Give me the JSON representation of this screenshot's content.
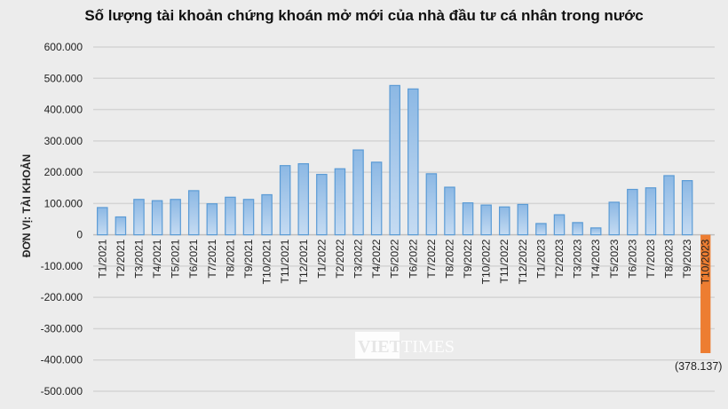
{
  "chart_data": {
    "type": "bar",
    "title": "Số lượng tài khoản chứng khoán mở mới của nhà đầu tư cá nhân trong nước",
    "ylabel": "ĐƠN VỊ: TÀI KHOẢN",
    "xlabel": "",
    "ylim": [
      -500000,
      600000
    ],
    "yticks": [
      600000,
      500000,
      400000,
      300000,
      200000,
      100000,
      0,
      -100000,
      -200000,
      -300000,
      -400000,
      -500000
    ],
    "ytick_labels": [
      "600.000",
      "500.000",
      "400.000",
      "300.000",
      "200.000",
      "100.000",
      "0",
      "-100.000",
      "-200.000",
      "-300.000",
      "-400.000",
      "-500.000"
    ],
    "grid": true,
    "categories": [
      "T1/2021",
      "T2/2021",
      "T3/2021",
      "T4/2021",
      "T5/2021",
      "T6/2021",
      "T7/2021",
      "T8/2021",
      "T9/2021",
      "T10/2021",
      "T11/2021",
      "T12/2021",
      "T1/2022",
      "T2/2022",
      "T3/2022",
      "T4/2022",
      "T5/2022",
      "T6/2022",
      "T7/2022",
      "T8/2022",
      "T9/2022",
      "T10/2022",
      "T11/2022",
      "T12/2022",
      "T1/2023",
      "T2/2023",
      "T3/2023",
      "T4/2023",
      "T5/2023",
      "T6/2023",
      "T7/2023",
      "T8/2023",
      "T9/2023",
      "T10/2023"
    ],
    "values": [
      87000,
      57000,
      113000,
      109000,
      113000,
      141000,
      99000,
      120000,
      113000,
      128000,
      221000,
      227000,
      193000,
      211000,
      271000,
      232000,
      477000,
      466000,
      195000,
      152000,
      102000,
      95000,
      89000,
      97000,
      36000,
      64000,
      39000,
      22000,
      104000,
      145000,
      150000,
      189000,
      173000,
      -378137
    ],
    "data_labels": [
      {
        "category": "T10/2023",
        "text": "(378.137)"
      }
    ],
    "colors": {
      "positive": "#9dc3e6",
      "positive_border": "#5b9bd5",
      "negative": "#ed7d31"
    }
  },
  "watermark": {
    "text_left": "VIET",
    "text_right": "TIMES"
  }
}
